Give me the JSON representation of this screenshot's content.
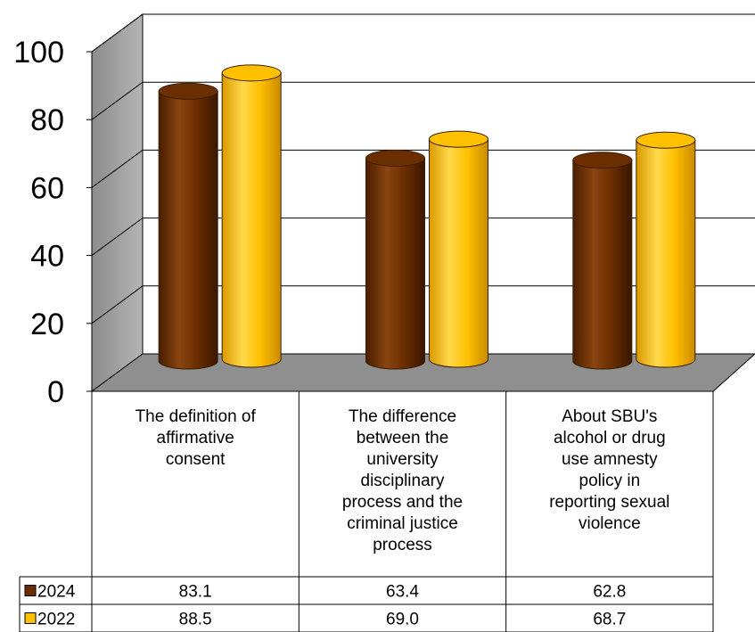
{
  "chart_data": {
    "type": "bar",
    "style": "3d-cylinder-with-data-table",
    "categories": [
      [
        "The definition of",
        "affirmative",
        "consent"
      ],
      [
        "The difference",
        "between the",
        "university",
        "disciplinary",
        "process and the",
        "criminal justice",
        "process"
      ],
      [
        "About SBU's",
        "alcohol or drug",
        "use amnesty",
        "policy in",
        "reporting sexual",
        "violence"
      ]
    ],
    "series": [
      {
        "name": "2024",
        "values": [
          83.1,
          63.4,
          62.8
        ],
        "color": "#6B2E00",
        "light": "#A0541C",
        "table": [
          "83.1",
          "63.4",
          "62.8"
        ]
      },
      {
        "name": "2022",
        "values": [
          88.5,
          69.0,
          68.7
        ],
        "color": "#FFC000",
        "light": "#FFE066",
        "table": [
          "88.5",
          "69.0",
          "68.7"
        ]
      }
    ],
    "ylim": [
      0,
      100
    ],
    "yticks": [
      "0",
      "20",
      "40",
      "60",
      "80",
      "100"
    ],
    "grid": true,
    "legend": "in data table"
  }
}
